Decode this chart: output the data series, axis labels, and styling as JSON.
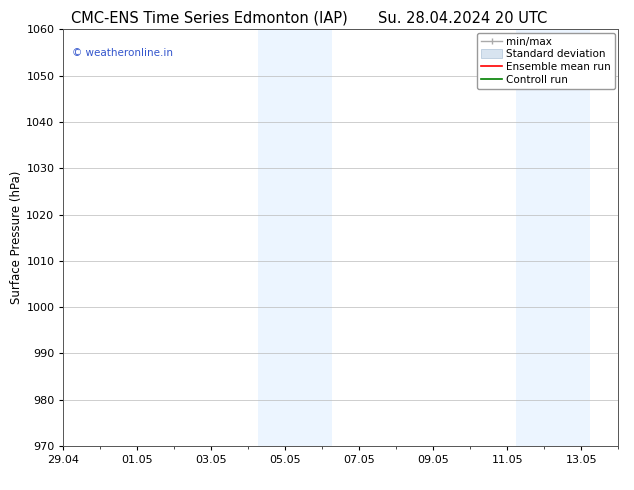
{
  "title_left": "CMC-ENS Time Series Edmonton (IAP)",
  "title_right": "Su. 28.04.2024 20 UTC",
  "ylabel": "Surface Pressure (hPa)",
  "ylim": [
    970,
    1060
  ],
  "yticks": [
    970,
    980,
    990,
    1000,
    1010,
    1020,
    1030,
    1040,
    1050,
    1060
  ],
  "xlim": [
    0,
    15
  ],
  "xtick_labels": [
    "29.04",
    "01.05",
    "03.05",
    "05.05",
    "07.05",
    "09.05",
    "11.05",
    "13.05"
  ],
  "xtick_positions": [
    0,
    2,
    4,
    6,
    8,
    10,
    12,
    14
  ],
  "shaded_bands": [
    {
      "x_start": 5.25,
      "x_end": 7.25
    },
    {
      "x_start": 12.25,
      "x_end": 14.25
    }
  ],
  "watermark_text": "© weatheronline.in",
  "watermark_color": "#3355cc",
  "legend_items": [
    {
      "label": "min/max",
      "color": "#aaaaaa",
      "lw": 1.5
    },
    {
      "label": "Standard deviation",
      "color": "#ccd9e8",
      "lw": 8
    },
    {
      "label": "Ensemble mean run",
      "color": "red",
      "lw": 1.5
    },
    {
      "label": "Controll run",
      "color": "green",
      "lw": 1.5
    }
  ],
  "bg_color": "#ffffff",
  "plot_bg_color": "#ffffff",
  "grid_color": "#bbbbbb",
  "shaded_color": "#ddeeff",
  "shaded_alpha": 0.55,
  "title_fontsize": 10.5,
  "axis_label_fontsize": 8.5,
  "tick_fontsize": 8,
  "legend_fontsize": 7.5
}
